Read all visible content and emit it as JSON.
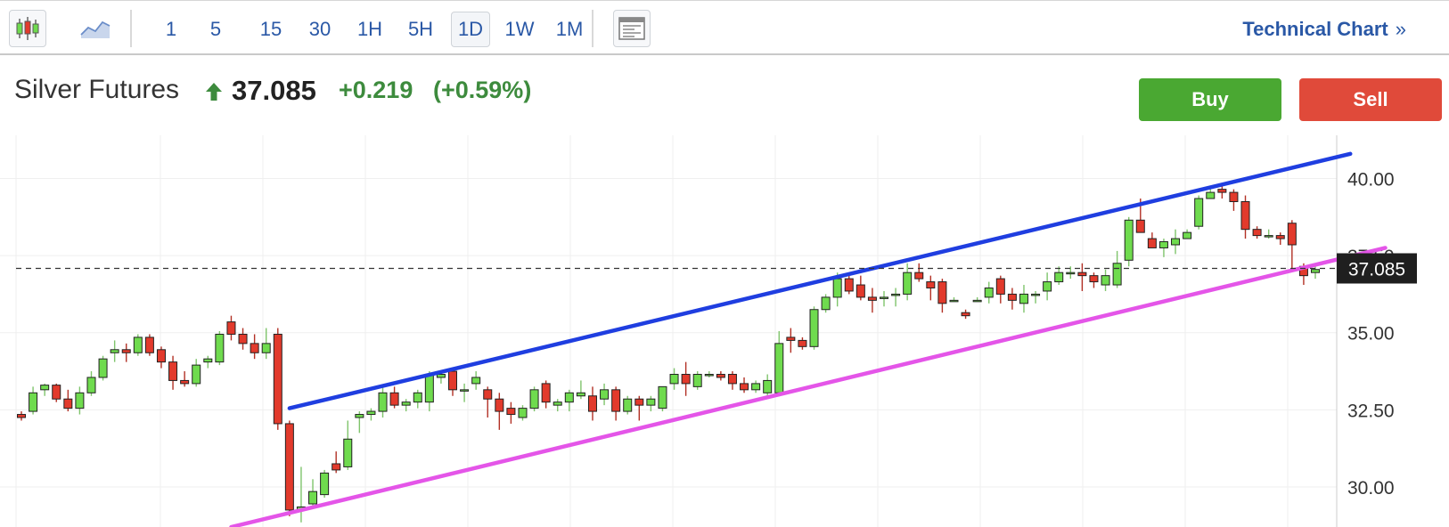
{
  "toolbar": {
    "chart_type_icons": [
      "candlestick-icon",
      "area-chart-icon"
    ],
    "timeframes": [
      "1",
      "5",
      "15",
      "30",
      "1H",
      "5H",
      "1D",
      "1W",
      "1M"
    ],
    "active_timeframe": "1D",
    "layout_icon": "layout-icon",
    "technical_chart_label": "Technical Chart",
    "technical_chart_chevron": "»"
  },
  "header": {
    "instrument": "Silver Futures",
    "direction_icon": "up-arrow-icon",
    "price": "37.085",
    "change": "+0.219",
    "change_pct": "(+0.59%)",
    "buy_label": "Buy",
    "sell_label": "Sell"
  },
  "colors": {
    "up_candle": "#6fdb4e",
    "down_candle": "#e23a2c",
    "upper_trendline": "#1f3ee0",
    "lower_trendline": "#e455e8",
    "link_blue": "#2a58a6",
    "positive_green": "#3d8b3d",
    "buy_green": "#4aa832",
    "sell_red": "#e04a3a"
  },
  "chart_data": {
    "type": "candlestick",
    "y_ticks": [
      40.0,
      37.5,
      35.0,
      32.5,
      30.0
    ],
    "y_tick_labels": [
      "40.00",
      "37.50",
      "35.00",
      "32.50",
      "30.00"
    ],
    "ylim": [
      28.7,
      41.4
    ],
    "last_price": 37.085,
    "last_price_label": "37.085",
    "grid": true,
    "candles": [
      [
        32.35,
        32.45,
        32.15,
        32.25
      ],
      [
        32.45,
        33.25,
        32.35,
        33.05
      ],
      [
        33.15,
        33.35,
        32.95,
        33.3
      ],
      [
        33.3,
        33.35,
        32.75,
        32.85
      ],
      [
        32.85,
        33.15,
        32.45,
        32.55
      ],
      [
        32.55,
        33.25,
        32.35,
        33.05
      ],
      [
        33.05,
        33.75,
        32.95,
        33.55
      ],
      [
        33.55,
        34.25,
        33.45,
        34.15
      ],
      [
        34.35,
        34.75,
        34.05,
        34.45
      ],
      [
        34.45,
        34.65,
        34.05,
        34.35
      ],
      [
        34.35,
        34.95,
        34.25,
        34.85
      ],
      [
        34.85,
        34.95,
        34.25,
        34.35
      ],
      [
        34.45,
        34.55,
        33.85,
        34.05
      ],
      [
        34.05,
        34.25,
        33.15,
        33.45
      ],
      [
        33.45,
        33.75,
        33.25,
        33.35
      ],
      [
        33.35,
        34.15,
        33.25,
        33.95
      ],
      [
        34.05,
        34.25,
        33.85,
        34.15
      ],
      [
        34.05,
        35.05,
        33.95,
        34.95
      ],
      [
        35.35,
        35.55,
        34.75,
        34.95
      ],
      [
        34.95,
        35.15,
        34.45,
        34.65
      ],
      [
        34.65,
        34.95,
        34.15,
        34.35
      ],
      [
        34.35,
        35.15,
        34.15,
        34.65
      ],
      [
        34.95,
        35.15,
        31.85,
        32.05
      ],
      [
        32.05,
        32.15,
        29.05,
        29.25
      ],
      [
        29.25,
        30.65,
        28.85,
        29.35
      ],
      [
        29.45,
        30.25,
        29.35,
        29.85
      ],
      [
        29.75,
        30.55,
        29.65,
        30.45
      ],
      [
        30.75,
        31.15,
        30.45,
        30.55
      ],
      [
        30.65,
        32.15,
        30.55,
        31.55
      ],
      [
        32.25,
        32.45,
        31.75,
        32.35
      ],
      [
        32.35,
        32.55,
        32.15,
        32.45
      ],
      [
        32.45,
        33.25,
        32.25,
        33.05
      ],
      [
        33.05,
        33.25,
        32.55,
        32.65
      ],
      [
        32.65,
        32.85,
        32.45,
        32.75
      ],
      [
        32.75,
        33.15,
        32.55,
        33.05
      ],
      [
        32.75,
        33.75,
        32.45,
        33.65
      ],
      [
        33.55,
        33.75,
        33.35,
        33.65
      ],
      [
        33.75,
        33.85,
        32.95,
        33.15
      ],
      [
        33.15,
        33.35,
        32.75,
        33.15
      ],
      [
        33.35,
        33.75,
        33.15,
        33.55
      ],
      [
        33.15,
        33.25,
        32.25,
        32.85
      ],
      [
        32.85,
        33.05,
        31.85,
        32.45
      ],
      [
        32.55,
        32.75,
        32.05,
        32.35
      ],
      [
        32.25,
        32.65,
        32.15,
        32.55
      ],
      [
        32.55,
        33.25,
        32.45,
        33.15
      ],
      [
        33.35,
        33.45,
        32.55,
        32.75
      ],
      [
        32.65,
        32.85,
        32.45,
        32.75
      ],
      [
        32.75,
        33.15,
        32.45,
        33.05
      ],
      [
        32.95,
        33.45,
        32.85,
        33.05
      ],
      [
        32.95,
        33.25,
        32.15,
        32.45
      ],
      [
        32.85,
        33.35,
        32.65,
        33.15
      ],
      [
        33.15,
        33.25,
        32.15,
        32.45
      ],
      [
        32.45,
        32.95,
        32.35,
        32.85
      ],
      [
        32.85,
        32.95,
        32.15,
        32.65
      ],
      [
        32.65,
        32.95,
        32.45,
        32.85
      ],
      [
        32.55,
        33.15,
        32.45,
        33.25
      ],
      [
        33.35,
        33.85,
        33.15,
        33.65
      ],
      [
        33.65,
        34.05,
        32.95,
        33.35
      ],
      [
        33.25,
        33.75,
        33.15,
        33.65
      ],
      [
        33.65,
        33.75,
        33.55,
        33.65
      ],
      [
        33.65,
        33.75,
        33.45,
        33.55
      ],
      [
        33.65,
        33.75,
        33.15,
        33.35
      ],
      [
        33.35,
        33.55,
        33.05,
        33.15
      ],
      [
        33.15,
        33.45,
        33.05,
        33.35
      ],
      [
        33.05,
        33.65,
        32.95,
        33.45
      ],
      [
        33.05,
        35.05,
        32.95,
        34.65
      ],
      [
        34.85,
        35.15,
        34.35,
        34.75
      ],
      [
        34.75,
        34.85,
        34.45,
        34.55
      ],
      [
        34.55,
        35.85,
        34.45,
        35.75
      ],
      [
        35.75,
        36.25,
        35.65,
        36.15
      ],
      [
        36.15,
        36.95,
        35.85,
        36.75
      ],
      [
        36.75,
        36.95,
        36.25,
        36.35
      ],
      [
        36.55,
        36.85,
        36.05,
        36.15
      ],
      [
        36.15,
        36.45,
        35.65,
        36.05
      ],
      [
        36.15,
        36.35,
        35.85,
        36.15
      ],
      [
        36.25,
        36.45,
        35.85,
        36.25
      ],
      [
        36.25,
        37.25,
        36.05,
        36.95
      ],
      [
        36.95,
        37.25,
        36.65,
        36.75
      ],
      [
        36.65,
        36.85,
        36.05,
        36.45
      ],
      [
        36.65,
        36.75,
        35.65,
        35.95
      ],
      [
        36.05,
        36.15,
        36.05,
        36.05
      ],
      [
        35.65,
        35.75,
        35.45,
        35.55
      ],
      [
        36.05,
        36.15,
        36.05,
        36.05
      ],
      [
        36.15,
        36.65,
        35.95,
        36.45
      ],
      [
        36.75,
        36.85,
        35.95,
        36.25
      ],
      [
        36.25,
        36.45,
        35.75,
        36.05
      ],
      [
        35.95,
        36.55,
        35.65,
        36.25
      ],
      [
        36.25,
        36.35,
        35.95,
        36.25
      ],
      [
        36.35,
        36.95,
        36.05,
        36.65
      ],
      [
        36.65,
        37.15,
        36.55,
        36.95
      ],
      [
        36.95,
        37.15,
        36.75,
        36.95
      ],
      [
        36.95,
        37.25,
        36.35,
        36.85
      ],
      [
        36.85,
        36.95,
        36.45,
        36.65
      ],
      [
        36.55,
        37.05,
        36.35,
        36.85
      ],
      [
        36.55,
        37.65,
        36.45,
        37.25
      ],
      [
        37.35,
        38.75,
        37.15,
        38.65
      ],
      [
        38.65,
        39.35,
        38.25,
        38.25
      ],
      [
        38.05,
        38.25,
        37.75,
        37.75
      ],
      [
        37.75,
        38.05,
        37.45,
        37.95
      ],
      [
        37.85,
        38.35,
        37.55,
        38.05
      ],
      [
        38.05,
        38.35,
        38.05,
        38.25
      ],
      [
        38.45,
        39.45,
        38.35,
        39.35
      ],
      [
        39.35,
        39.75,
        39.35,
        39.55
      ],
      [
        39.65,
        39.75,
        39.35,
        39.55
      ],
      [
        39.55,
        39.65,
        38.95,
        39.25
      ],
      [
        39.25,
        39.45,
        38.05,
        38.35
      ],
      [
        38.35,
        38.45,
        38.05,
        38.15
      ],
      [
        38.15,
        38.35,
        38.05,
        38.15
      ],
      [
        38.15,
        38.25,
        37.85,
        38.05
      ],
      [
        38.55,
        38.65,
        37.05,
        37.85
      ],
      [
        37.15,
        37.25,
        36.55,
        36.85
      ],
      [
        36.95,
        37.25,
        36.75,
        37.05
      ]
    ],
    "trendlines": [
      {
        "name": "upper-channel",
        "color": "#1f3ee0",
        "from_index": 23,
        "from_price": 32.55,
        "to_index": 114,
        "to_price": 40.8
      },
      {
        "name": "lower-channel",
        "color": "#e455e8",
        "from_index": 18,
        "from_price": 28.7,
        "to_index": 117,
        "to_price": 37.75
      }
    ]
  }
}
